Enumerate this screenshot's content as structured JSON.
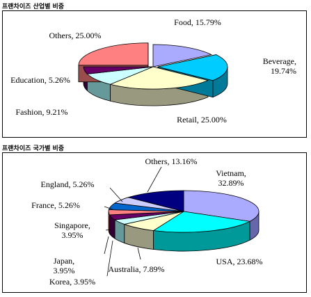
{
  "chart_data": [
    {
      "type": "pie",
      "title": "프랜차이즈 산업별 비중",
      "slices": [
        {
          "label": "Food",
          "value": 15.79,
          "value_text": "15.79%",
          "color": "#AAAAFF",
          "side": "#6666AA"
        },
        {
          "label": "Beverage",
          "value": 19.74,
          "value_text": "19.74%",
          "color": "#00CCFF",
          "side": "#007A99"
        },
        {
          "label": "Retail",
          "value": 25.0,
          "value_text": "25.00%",
          "color": "#FFFFCC",
          "side": "#999980"
        },
        {
          "label": "Fashion",
          "value": 9.21,
          "value_text": "9.21%",
          "color": "#CCFFFF",
          "side": "#669999"
        },
        {
          "label": "Education",
          "value": 5.26,
          "value_text": "5.26%",
          "color": "#660066",
          "side": "#330033"
        },
        {
          "label": "Others",
          "value": 25.0,
          "value_text": "25.00%",
          "color": "#FF8080",
          "side": "#994D4D"
        }
      ]
    },
    {
      "type": "pie",
      "title": "프랜차이즈 국가별 비중",
      "slices": [
        {
          "label": "Vietnam",
          "value": 32.89,
          "value_text": "32.89%",
          "color": "#AAAAFF",
          "side": "#6666AA"
        },
        {
          "label": "USA",
          "value": 23.68,
          "value_text": "23.68%",
          "color": "#00FFFF",
          "side": "#009999"
        },
        {
          "label": "Australia",
          "value": 7.89,
          "value_text": "7.89%",
          "color": "#FFFFCC",
          "side": "#999980"
        },
        {
          "label": "Korea",
          "value": 3.95,
          "value_text": "3.95%",
          "color": "#CCFFFF",
          "side": "#669999"
        },
        {
          "label": "Japan",
          "value": 3.95,
          "value_text": "3.95%",
          "color": "#660066",
          "side": "#330033"
        },
        {
          "label": "Singapore",
          "value": 3.95,
          "value_text": "3.95%",
          "color": "#FF8080",
          "side": "#994D4D"
        },
        {
          "label": "France",
          "value": 5.26,
          "value_text": "5.26%",
          "color": "#0066CC",
          "side": "#003D7A"
        },
        {
          "label": "England",
          "value": 5.26,
          "value_text": "5.26%",
          "color": "#CCCCFF",
          "side": "#7A7A99"
        },
        {
          "label": "Others",
          "value": 13.16,
          "value_text": "13.16%",
          "color": "#000080",
          "side": "#00004D"
        }
      ]
    }
  ]
}
